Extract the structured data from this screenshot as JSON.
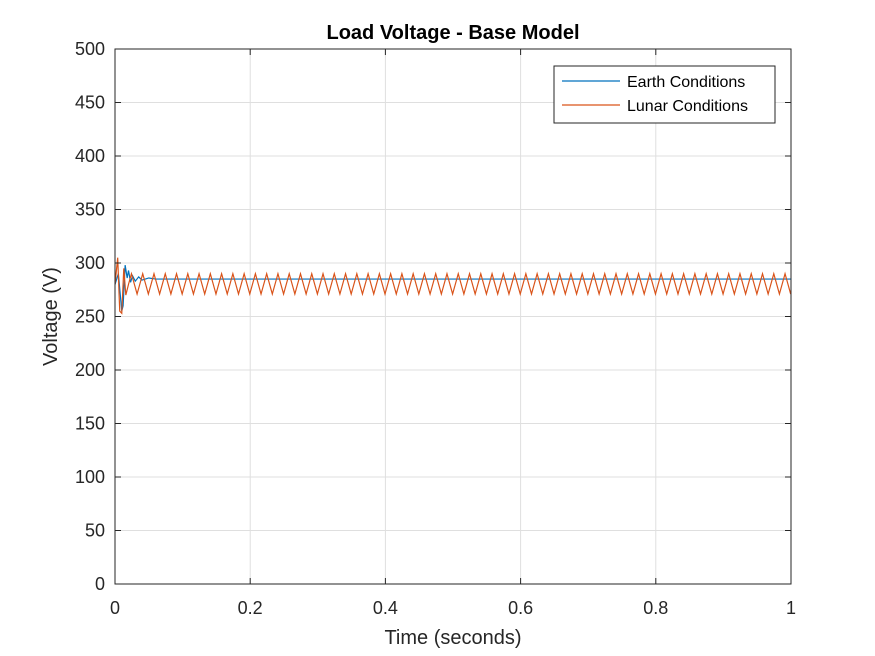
{
  "chart_data": {
    "type": "line",
    "title": "Load Voltage - Base Model",
    "xlabel": "Time (seconds)",
    "ylabel": "Voltage (V)",
    "xlim": [
      0,
      1
    ],
    "ylim": [
      0,
      500
    ],
    "xticks": [
      0,
      0.2,
      0.4,
      0.6,
      0.8,
      1
    ],
    "xtick_labels": [
      "0",
      "0.2",
      "0.4",
      "0.6",
      "0.8",
      "1"
    ],
    "yticks": [
      0,
      50,
      100,
      150,
      200,
      250,
      300,
      350,
      400,
      450,
      500
    ],
    "ytick_labels": [
      "0",
      "50",
      "100",
      "150",
      "200",
      "250",
      "300",
      "350",
      "400",
      "450",
      "500"
    ],
    "grid": true,
    "legend_position": "top-right",
    "series": [
      {
        "name": "Earth Conditions",
        "color": "#0072BD",
        "x": [
          0,
          0.005,
          0.01,
          0.012,
          0.015,
          0.018,
          0.02,
          0.023,
          0.026,
          0.03,
          0.035,
          0.04,
          0.05,
          0.06,
          0.08,
          0.1,
          0.2,
          0.4,
          0.6,
          0.8,
          1.0
        ],
        "y": [
          280,
          290,
          255,
          260,
          298,
          286,
          293,
          282,
          288,
          283,
          287,
          284,
          286,
          285,
          285,
          285,
          285,
          285,
          285,
          285,
          285
        ]
      },
      {
        "name": "Lunar Conditions",
        "color": "#D95319",
        "x": [
          0,
          0.004,
          0.007,
          0.01,
          0.013,
          0.016
        ],
        "y": [
          280,
          305,
          255,
          253,
          295,
          270
        ],
        "steady_state": {
          "from_x": 0.016,
          "to_x": 1.0,
          "min": 271,
          "max": 290,
          "period": 0.01667
        }
      }
    ]
  }
}
